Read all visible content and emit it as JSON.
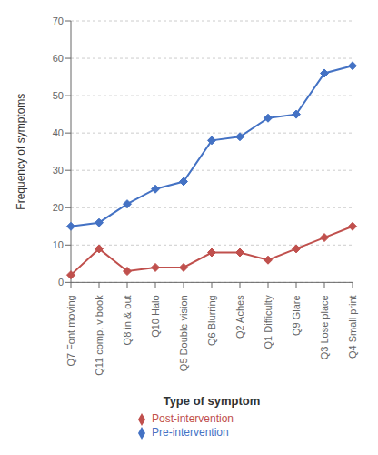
{
  "chart_data": {
    "type": "line",
    "categories": [
      "Q7 Font moving",
      "Q11 comp. v book",
      "Q8 in & out",
      "Q10 Halo",
      "Q5 Double vision",
      "Q6 Blurring",
      "Q2 Aches",
      "Q1 Difficulty",
      "Q9 Glare",
      "Q3 Lose place",
      "Q4 Small print"
    ],
    "series": [
      {
        "name": "Pre-intervention",
        "color": "#4472C4",
        "marker": "diamond",
        "values": [
          15,
          16,
          21,
          25,
          27,
          38,
          39,
          44,
          45,
          56,
          58
        ]
      },
      {
        "name": "Post-intervention",
        "color": "#C0504D",
        "marker": "diamond",
        "values": [
          2,
          9,
          3,
          4,
          4,
          8,
          8,
          6,
          9,
          12,
          15
        ]
      }
    ],
    "ylabel": "Frequency of symptoms",
    "xlabel": "Type of symptom",
    "ylim": [
      0,
      70
    ],
    "yticks": [
      0,
      10,
      20,
      30,
      40,
      50,
      60,
      70
    ],
    "grid": true,
    "legend": "bottom"
  }
}
